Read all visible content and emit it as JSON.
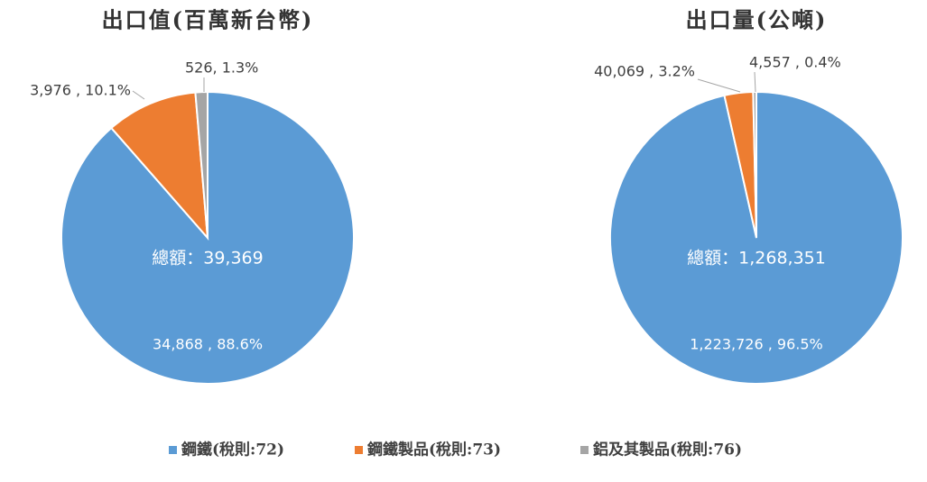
{
  "chart_data": [
    {
      "type": "pie",
      "title": "出口值(百萬新台幣)",
      "annotation": "總額：39,369",
      "categories": [
        "鋼鐵(稅則:72)",
        "鋼鐵製品(稅則:73)",
        "鋁及其製品(稅則:76)"
      ],
      "values": [
        34868,
        3976,
        526
      ],
      "value_labels": [
        "34,868 , 88.6%",
        "3,976 , 10.1%",
        "526, 1.3%"
      ],
      "colors": [
        "#5b9bd5",
        "#ed7d31",
        "#a5a5a5"
      ]
    },
    {
      "type": "pie",
      "title": "出口量(公噸)",
      "annotation": "總額：1,268,351",
      "categories": [
        "鋼鐵(稅則:72)",
        "鋼鐵製品(稅則:73)",
        "鋁及其製品(稅則:76)"
      ],
      "values": [
        1223726,
        40069,
        4557
      ],
      "value_labels": [
        "1,223,726 , 96.5%",
        "40,069 , 3.2%",
        "4,557 , 0.4%"
      ],
      "colors": [
        "#5b9bd5",
        "#ed7d31",
        "#a5a5a5"
      ]
    }
  ]
}
